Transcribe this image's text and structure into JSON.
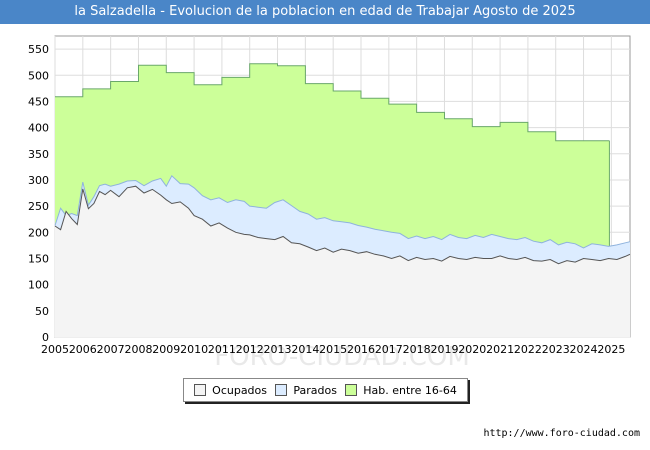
{
  "chart_data": {
    "type": "area",
    "title": "la Salzadella - Evolucion de la poblacion en edad de Trabajar Agosto de 2025",
    "xlim": [
      2005,
      2025.67
    ],
    "ylim": [
      0,
      575
    ],
    "yticks": [
      0,
      50,
      100,
      150,
      200,
      250,
      300,
      350,
      400,
      450,
      500,
      550
    ],
    "xticks": [
      "2005",
      "2006",
      "2007",
      "2008",
      "2009",
      "2010",
      "2011",
      "2012",
      "2013",
      "2014",
      "2015",
      "2016",
      "2017",
      "2018",
      "2019",
      "2020",
      "2021",
      "2022",
      "2023",
      "2024",
      "2025"
    ],
    "grid": true,
    "legend_position": "bottom",
    "series": [
      {
        "name": "Hab. entre 16-64",
        "fill": "#ccff99",
        "stroke": "#6aa86a",
        "step": true,
        "x": [
          2005,
          2006,
          2007,
          2008,
          2009,
          2010,
          2011,
          2012,
          2013,
          2014,
          2015,
          2016,
          2017,
          2018,
          2019,
          2020,
          2021,
          2022,
          2023,
          2024
        ],
        "values": [
          459,
          474,
          488,
          519,
          505,
          482,
          496,
          522,
          518,
          484,
          470,
          456,
          445,
          429,
          417,
          402,
          410,
          392,
          375,
          375
        ]
      },
      {
        "name": "Parados",
        "fill": "#dcecff",
        "stroke": "#8fb3dd",
        "x": [
          2005.0,
          2005.2,
          2005.4,
          2005.6,
          2005.8,
          2006.0,
          2006.2,
          2006.4,
          2006.6,
          2006.8,
          2007.0,
          2007.3,
          2007.6,
          2007.9,
          2008.2,
          2008.5,
          2008.8,
          2009.0,
          2009.2,
          2009.5,
          2009.8,
          2010.0,
          2010.3,
          2010.6,
          2010.9,
          2011.2,
          2011.5,
          2011.8,
          2012.0,
          2012.3,
          2012.6,
          2012.9,
          2013.2,
          2013.5,
          2013.8,
          2014.1,
          2014.4,
          2014.7,
          2015.0,
          2015.3,
          2015.6,
          2015.9,
          2016.2,
          2016.5,
          2016.8,
          2017.1,
          2017.4,
          2017.7,
          2018.0,
          2018.3,
          2018.6,
          2018.9,
          2019.2,
          2019.5,
          2019.8,
          2020.1,
          2020.4,
          2020.7,
          2021.0,
          2021.3,
          2021.6,
          2021.9,
          2022.2,
          2022.5,
          2022.8,
          2023.1,
          2023.4,
          2023.7,
          2024.0,
          2024.3,
          2024.6,
          2024.9,
          2025.2,
          2025.5,
          2025.67
        ],
        "values": [
          213,
          246,
          232,
          236,
          232,
          296,
          252,
          268,
          289,
          292,
          288,
          292,
          298,
          299,
          289,
          298,
          303,
          288,
          308,
          293,
          292,
          285,
          270,
          262,
          266,
          257,
          262,
          259,
          250,
          248,
          246,
          257,
          262,
          251,
          240,
          235,
          225,
          228,
          222,
          220,
          218,
          213,
          210,
          206,
          203,
          200,
          198,
          188,
          193,
          188,
          192,
          186,
          196,
          190,
          188,
          194,
          190,
          196,
          192,
          188,
          186,
          190,
          183,
          180,
          186,
          176,
          181,
          178,
          170,
          178,
          176,
          173,
          176,
          180,
          182
        ]
      },
      {
        "name": "Ocupados",
        "fill": "#f4f4f4",
        "stroke": "#555555",
        "x": [
          2005.0,
          2005.2,
          2005.4,
          2005.6,
          2005.8,
          2006.0,
          2006.2,
          2006.4,
          2006.6,
          2006.8,
          2007.0,
          2007.3,
          2007.6,
          2007.9,
          2008.2,
          2008.5,
          2008.8,
          2009.0,
          2009.2,
          2009.5,
          2009.8,
          2010.0,
          2010.3,
          2010.6,
          2010.9,
          2011.2,
          2011.5,
          2011.8,
          2012.0,
          2012.3,
          2012.6,
          2012.9,
          2013.2,
          2013.5,
          2013.8,
          2014.1,
          2014.4,
          2014.7,
          2015.0,
          2015.3,
          2015.6,
          2015.9,
          2016.2,
          2016.5,
          2016.8,
          2017.1,
          2017.4,
          2017.7,
          2018.0,
          2018.3,
          2018.6,
          2018.9,
          2019.2,
          2019.5,
          2019.8,
          2020.1,
          2020.4,
          2020.7,
          2021.0,
          2021.3,
          2021.6,
          2021.9,
          2022.2,
          2022.5,
          2022.8,
          2023.1,
          2023.4,
          2023.7,
          2024.0,
          2024.3,
          2024.6,
          2024.9,
          2025.2,
          2025.5,
          2025.67
        ],
        "values": [
          212,
          205,
          240,
          226,
          215,
          283,
          245,
          255,
          278,
          272,
          280,
          268,
          285,
          288,
          275,
          282,
          271,
          262,
          255,
          258,
          246,
          232,
          225,
          212,
          218,
          208,
          200,
          196,
          195,
          190,
          188,
          186,
          192,
          180,
          178,
          172,
          165,
          170,
          162,
          168,
          165,
          160,
          163,
          158,
          155,
          150,
          155,
          146,
          152,
          148,
          150,
          145,
          154,
          150,
          148,
          152,
          150,
          150,
          155,
          150,
          148,
          152,
          146,
          145,
          148,
          140,
          146,
          143,
          150,
          148,
          146,
          150,
          148,
          154,
          158
        ]
      }
    ],
    "source": "http://www.foro-ciudad.com",
    "watermark": "FORO-CIUDAD.COM"
  }
}
